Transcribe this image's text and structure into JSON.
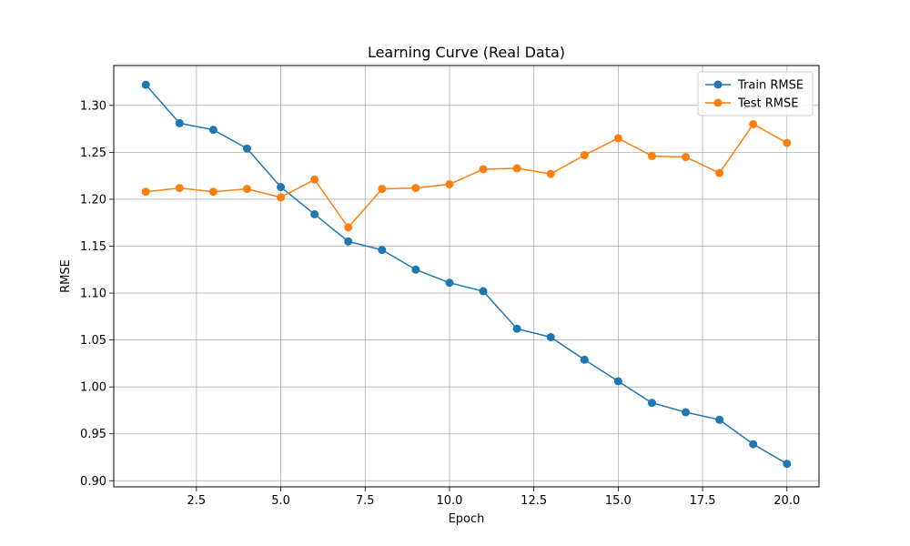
{
  "chart_data": {
    "type": "line",
    "title": "Learning Curve (Real Data)",
    "xlabel": "Epoch",
    "ylabel": "RMSE",
    "xlim": [
      0.05,
      20.95
    ],
    "ylim": [
      0.8935,
      1.3425
    ],
    "x_ticks": [
      2.5,
      5.0,
      7.5,
      10.0,
      12.5,
      15.0,
      17.5,
      20.0
    ],
    "x_tick_labels": [
      "2.5",
      "5.0",
      "7.5",
      "10.0",
      "12.5",
      "15.0",
      "17.5",
      "20.0"
    ],
    "y_ticks": [
      0.9,
      0.95,
      1.0,
      1.05,
      1.1,
      1.15,
      1.2,
      1.25,
      1.3
    ],
    "y_tick_labels": [
      "0.90",
      "0.95",
      "1.00",
      "1.05",
      "1.10",
      "1.15",
      "1.20",
      "1.25",
      "1.30"
    ],
    "grid": true,
    "legend_position": "top-right",
    "x": [
      1,
      2,
      3,
      4,
      5,
      6,
      7,
      8,
      9,
      10,
      11,
      12,
      13,
      14,
      15,
      16,
      17,
      18,
      19,
      20
    ],
    "series": [
      {
        "name": "Train RMSE",
        "color": "#1f77b4",
        "marker": "circle",
        "values": [
          1.322,
          1.281,
          1.274,
          1.254,
          1.213,
          1.184,
          1.155,
          1.146,
          1.125,
          1.111,
          1.102,
          1.062,
          1.053,
          1.029,
          1.006,
          0.983,
          0.973,
          0.965,
          0.939,
          0.918
        ]
      },
      {
        "name": "Test RMSE",
        "color": "#ff7f0e",
        "marker": "circle",
        "values": [
          1.208,
          1.212,
          1.208,
          1.211,
          1.202,
          1.221,
          1.17,
          1.211,
          1.212,
          1.216,
          1.232,
          1.233,
          1.227,
          1.247,
          1.265,
          1.246,
          1.245,
          1.228,
          1.28,
          1.26
        ]
      }
    ]
  }
}
